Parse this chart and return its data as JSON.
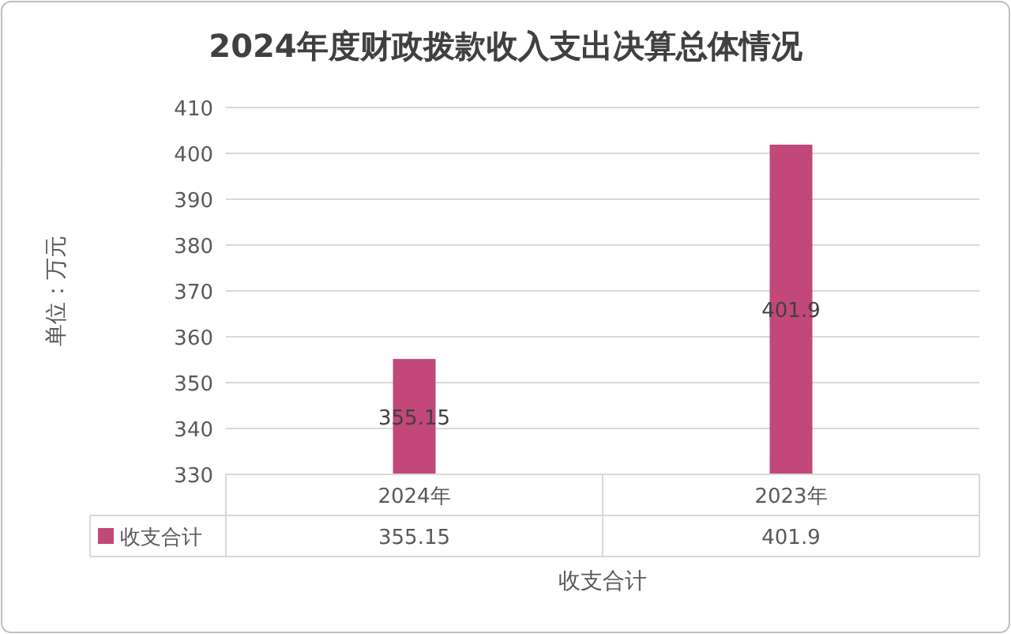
{
  "chart_data": {
    "type": "bar",
    "title": "2024年度财政拨款收入支出决算总体情况",
    "ylabel": "单位：万元",
    "xlabel": "收支合计",
    "categories": [
      "2024年",
      "2023年"
    ],
    "series": [
      {
        "name": "收支合计",
        "color": "#c2477a",
        "values": [
          355.15,
          401.9
        ],
        "value_labels": [
          "355.15",
          "401.9"
        ]
      }
    ],
    "ylim": [
      330,
      410
    ],
    "yticks": [
      330,
      340,
      350,
      360,
      370,
      380,
      390,
      400,
      410
    ],
    "grid": "y",
    "legend": "bottom"
  }
}
